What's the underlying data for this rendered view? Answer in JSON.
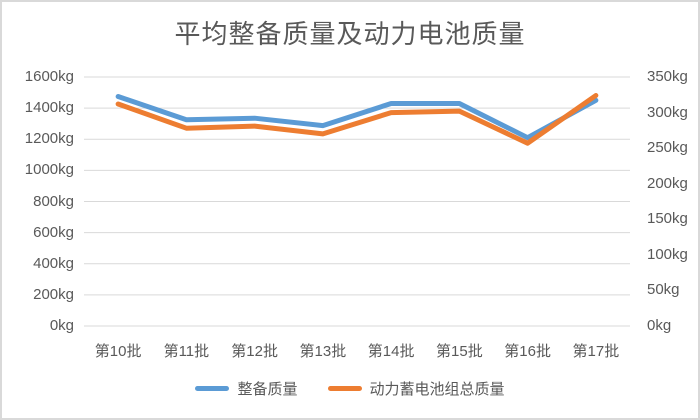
{
  "chart_data": {
    "type": "line",
    "title": "平均整备质量及动力电池质量",
    "categories": [
      "第10批",
      "第11批",
      "第12批",
      "第13批",
      "第14批",
      "第15批",
      "第16批",
      "第17批"
    ],
    "series": [
      {
        "name": "整备质量",
        "axis": "left",
        "color": "#5B9BD5",
        "values": [
          1475,
          1325,
          1335,
          1288,
          1430,
          1430,
          1210,
          1450
        ]
      },
      {
        "name": "动力蓄电池组总质量",
        "axis": "right",
        "color": "#ED7D31",
        "values": [
          312,
          278,
          281,
          270,
          300,
          302,
          257,
          324
        ]
      }
    ],
    "left_axis": {
      "min": 0,
      "max": 1600,
      "step": 200,
      "tick_labels": [
        "1600kg",
        "1400kg",
        "1200kg",
        "1000kg",
        "800kg",
        "600kg",
        "400kg",
        "200kg",
        "0kg"
      ]
    },
    "right_axis": {
      "min": 0,
      "max": 350,
      "step": 50,
      "tick_labels": [
        "350kg",
        "300kg",
        "250kg",
        "200kg",
        "150kg",
        "100kg",
        "50kg",
        "0kg"
      ]
    },
    "grid": true,
    "legend_position": "bottom"
  },
  "colors": {
    "grid": "#d9d9d9",
    "text": "#595959",
    "border": "#d9d9d9",
    "background": "#ffffff",
    "series_blue": "#5B9BD5",
    "series_orange": "#ED7D31"
  }
}
